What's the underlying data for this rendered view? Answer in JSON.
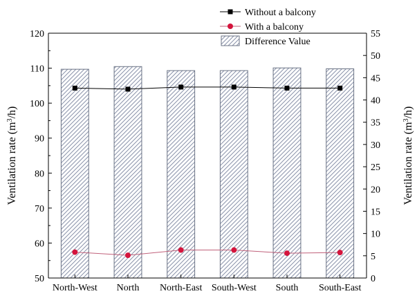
{
  "chart_data": {
    "type": "bar+line",
    "categories": [
      "North-West",
      "North",
      "North-East",
      "South-West",
      "South",
      "South-East"
    ],
    "series": [
      {
        "name": "Without a balcony",
        "type": "line",
        "axis": "left",
        "marker": "square",
        "color": "#000000",
        "values": [
          104.3,
          104.0,
          104.6,
          104.6,
          104.3,
          104.3
        ]
      },
      {
        "name": "With a balcony",
        "type": "line",
        "axis": "left",
        "marker": "circle",
        "color": "#d4143c",
        "line_color": "#c0607a",
        "values": [
          57.4,
          56.5,
          58.0,
          58.0,
          57.1,
          57.3
        ]
      },
      {
        "name": "Difference Value",
        "type": "bar",
        "axis": "right",
        "pattern": "hatched",
        "color": "#9aa3b8",
        "values": [
          46.9,
          47.5,
          46.6,
          46.6,
          47.2,
          47.0
        ]
      }
    ],
    "ylabel_left": "Ventilation rate (m³/h)",
    "ylabel_right": "Ventilation rate (m³/h)",
    "ylim_left": [
      50,
      120
    ],
    "yticks_left": [
      "50",
      "60",
      "70",
      "80",
      "90",
      "100",
      "110",
      "120"
    ],
    "ylim_right": [
      0,
      55
    ],
    "yticks_right": [
      "0",
      "5",
      "10",
      "15",
      "20",
      "25",
      "30",
      "35",
      "40",
      "45",
      "50",
      "55"
    ],
    "legend_position": "top-right",
    "grid": false
  }
}
